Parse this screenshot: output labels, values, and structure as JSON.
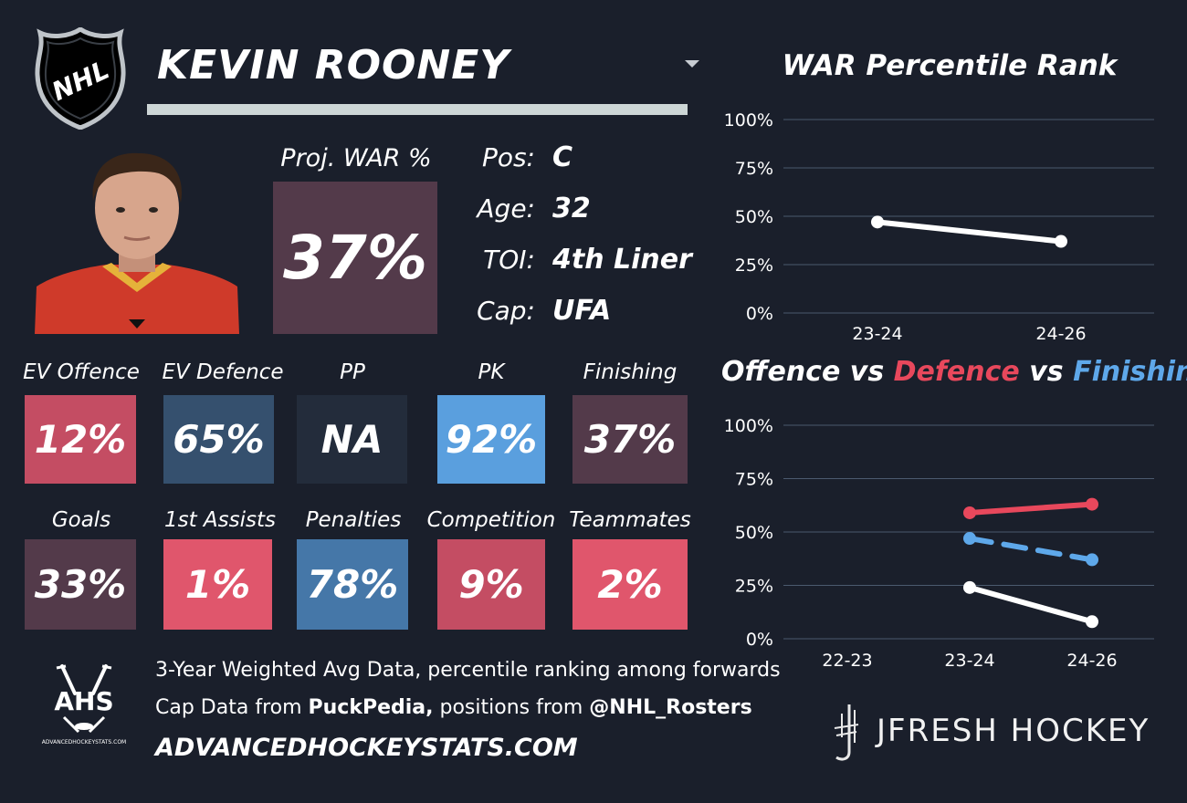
{
  "player": {
    "name": "KEVIN ROONEY",
    "proj_war_label": "Proj. WAR %",
    "proj_war_value": "37%",
    "info": [
      {
        "key": "Pos:",
        "value": "C"
      },
      {
        "key": "Age:",
        "value": "32"
      },
      {
        "key": "TOI:",
        "value": "4th Liner"
      },
      {
        "key": "Cap:",
        "value": "UFA"
      }
    ]
  },
  "stats_row1": [
    {
      "label": "EV Offence",
      "value": "12%",
      "color": "#c44d63"
    },
    {
      "label": "EV Defence",
      "value": "65%",
      "color": "#35506e"
    },
    {
      "label": "PP",
      "value": "NA",
      "color": "#232c3b"
    },
    {
      "label": "PK",
      "value": "92%",
      "color": "#5a9fde"
    },
    {
      "label": "Finishing",
      "value": "37%",
      "color": "#533a4a"
    }
  ],
  "stats_row2": [
    {
      "label": "Goals",
      "value": "33%",
      "color": "#533a4a"
    },
    {
      "label": "1st Assists",
      "value": "1%",
      "color": "#e0566c"
    },
    {
      "label": "Penalties",
      "value": "78%",
      "color": "#4577a8"
    },
    {
      "label": "Competition",
      "value": "9%",
      "color": "#c44d63"
    },
    {
      "label": "Teammates",
      "value": "2%",
      "color": "#e0566c"
    }
  ],
  "footer": {
    "line1": "3-Year Weighted Avg Data, percentile ranking among forwards",
    "line2_pre": "Cap Data from ",
    "line2_bold1": "PuckPedia,",
    "line2_mid": " positions from ",
    "line2_bold2": "@NHL_Rosters",
    "line3": "ADVANCEDHOCKEYSTATS.COM",
    "ahs_logo_text": "AHS",
    "ahs_logo_sub": "ADVANCEDHOCKEYSTATS.COM"
  },
  "branding": {
    "nhl_logo_text": "NHL",
    "jfresh": "JFRESH HOCKEY"
  },
  "colors": {
    "background": "#1a1f2b",
    "offence": "#ffffff",
    "defence": "#e8485c",
    "finishing": "#5ea8ea",
    "gridline": "#4b5a6e"
  },
  "chart_data": [
    {
      "type": "line",
      "title": "WAR Percentile Rank",
      "categories": [
        "23-24",
        "24-26"
      ],
      "series": [
        {
          "values": [
            47,
            37
          ]
        }
      ],
      "ylim": [
        0,
        100
      ],
      "yticks": [
        "0%",
        "25%",
        "50%",
        "75%",
        "100%"
      ],
      "grid": true
    },
    {
      "type": "line",
      "title_parts": [
        "Offence",
        " vs ",
        "Defence",
        " vs ",
        "Finishing"
      ],
      "categories": [
        "22-23",
        "23-24",
        "24-26"
      ],
      "series": [
        {
          "name": "Offence",
          "values": [
            null,
            24,
            8
          ]
        },
        {
          "name": "Defence",
          "values": [
            null,
            59,
            63
          ]
        },
        {
          "name": "Finishing",
          "values": [
            null,
            47,
            37
          ]
        }
      ],
      "ylim": [
        0,
        100
      ],
      "yticks": [
        "0%",
        "25%",
        "50%",
        "75%",
        "100%"
      ],
      "grid": true
    }
  ]
}
